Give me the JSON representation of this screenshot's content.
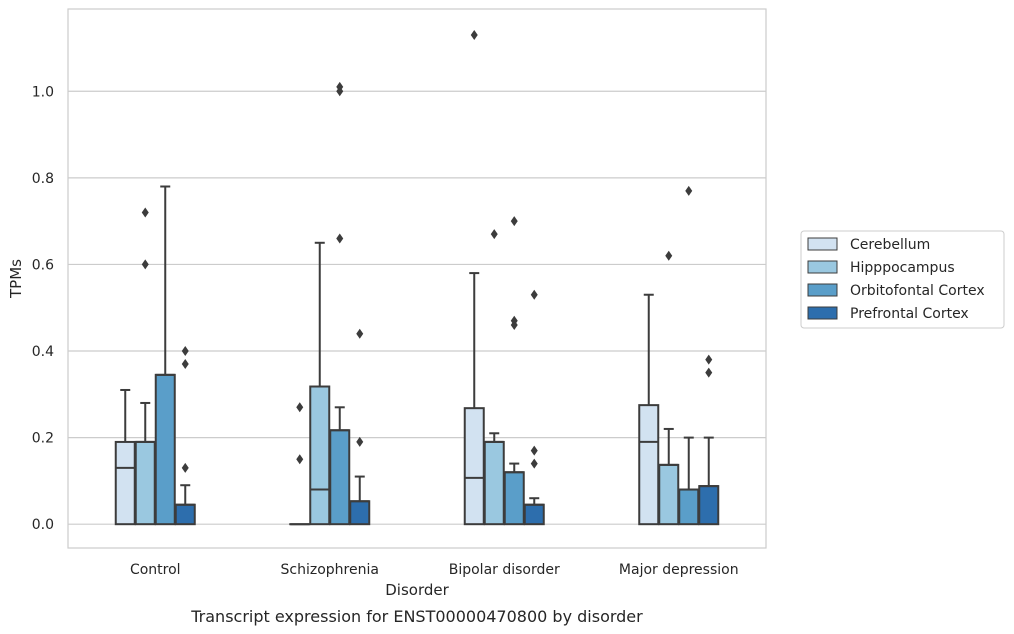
{
  "chart_data": {
    "type": "boxplot",
    "title": "",
    "caption": "Transcript expression for ENST00000470800 by disorder",
    "xlabel": "Disorder",
    "ylabel": "TPMs",
    "ylim": [
      -0.055,
      1.19
    ],
    "yticks": [
      0.0,
      0.2,
      0.4,
      0.6,
      0.8,
      1.0
    ],
    "ytick_labels": [
      "0.0",
      "0.2",
      "0.4",
      "0.6",
      "0.8",
      "1.0"
    ],
    "grid": "horizontal",
    "legend_position": "right",
    "categories": [
      "Control",
      "Schizophrenia",
      "Bipolar disorder",
      "Major depression"
    ],
    "series": [
      {
        "name": "Cerebellum",
        "color": "#d2e2f1",
        "boxes": [
          {
            "q1": 0.0,
            "median": 0.13,
            "q3": 0.19,
            "whisker_low": 0.0,
            "whisker_high": 0.31,
            "outliers": []
          },
          {
            "q1": 0.0,
            "median": 0.0,
            "q3": 0.0,
            "whisker_low": 0.0,
            "whisker_high": 0.0,
            "outliers": [
              0.27,
              0.15
            ]
          },
          {
            "q1": 0.0,
            "median": 0.107,
            "q3": 0.268,
            "whisker_low": 0.0,
            "whisker_high": 0.58,
            "outliers": [
              1.13
            ]
          },
          {
            "q1": 0.0,
            "median": 0.19,
            "q3": 0.275,
            "whisker_low": 0.0,
            "whisker_high": 0.53,
            "outliers": []
          }
        ]
      },
      {
        "name": "Hipppocampus",
        "color": "#9ac8e0",
        "boxes": [
          {
            "q1": 0.0,
            "median": 0.19,
            "q3": 0.19,
            "whisker_low": 0.0,
            "whisker_high": 0.28,
            "outliers": [
              0.72,
              0.6
            ]
          },
          {
            "q1": 0.0,
            "median": 0.08,
            "q3": 0.318,
            "whisker_low": 0.0,
            "whisker_high": 0.65,
            "outliers": []
          },
          {
            "q1": 0.0,
            "median": 0.19,
            "q3": 0.19,
            "whisker_low": 0.0,
            "whisker_high": 0.21,
            "outliers": [
              0.67
            ]
          },
          {
            "q1": 0.0,
            "median": 0.137,
            "q3": 0.137,
            "whisker_low": 0.0,
            "whisker_high": 0.22,
            "outliers": [
              0.62
            ]
          }
        ]
      },
      {
        "name": "Orbitofontal Cortex",
        "color": "#5a9ec9",
        "boxes": [
          {
            "q1": 0.0,
            "median": 0.345,
            "q3": 0.345,
            "whisker_low": 0.0,
            "whisker_high": 0.78,
            "outliers": []
          },
          {
            "q1": 0.0,
            "median": 0.217,
            "q3": 0.217,
            "whisker_low": 0.0,
            "whisker_high": 0.27,
            "outliers": [
              1.01,
              1.0,
              0.66
            ]
          },
          {
            "q1": 0.0,
            "median": 0.12,
            "q3": 0.12,
            "whisker_low": 0.0,
            "whisker_high": 0.14,
            "outliers": [
              0.7,
              0.47,
              0.46
            ]
          },
          {
            "q1": 0.0,
            "median": 0.08,
            "q3": 0.08,
            "whisker_low": 0.0,
            "whisker_high": 0.2,
            "outliers": [
              0.77
            ]
          }
        ]
      },
      {
        "name": "Prefrontal Cortex",
        "color": "#2d6ead",
        "boxes": [
          {
            "q1": 0.0,
            "median": 0.045,
            "q3": 0.045,
            "whisker_low": 0.0,
            "whisker_high": 0.09,
            "outliers": [
              0.4,
              0.37,
              0.13
            ]
          },
          {
            "q1": 0.0,
            "median": 0.053,
            "q3": 0.053,
            "whisker_low": 0.0,
            "whisker_high": 0.11,
            "outliers": [
              0.44,
              0.19
            ]
          },
          {
            "q1": 0.0,
            "median": 0.045,
            "q3": 0.045,
            "whisker_low": 0.0,
            "whisker_high": 0.06,
            "outliers": [
              0.53,
              0.17,
              0.14
            ]
          },
          {
            "q1": 0.0,
            "median": 0.088,
            "q3": 0.088,
            "whisker_low": 0.0,
            "whisker_high": 0.2,
            "outliers": [
              0.38,
              0.35
            ]
          }
        ]
      }
    ]
  }
}
